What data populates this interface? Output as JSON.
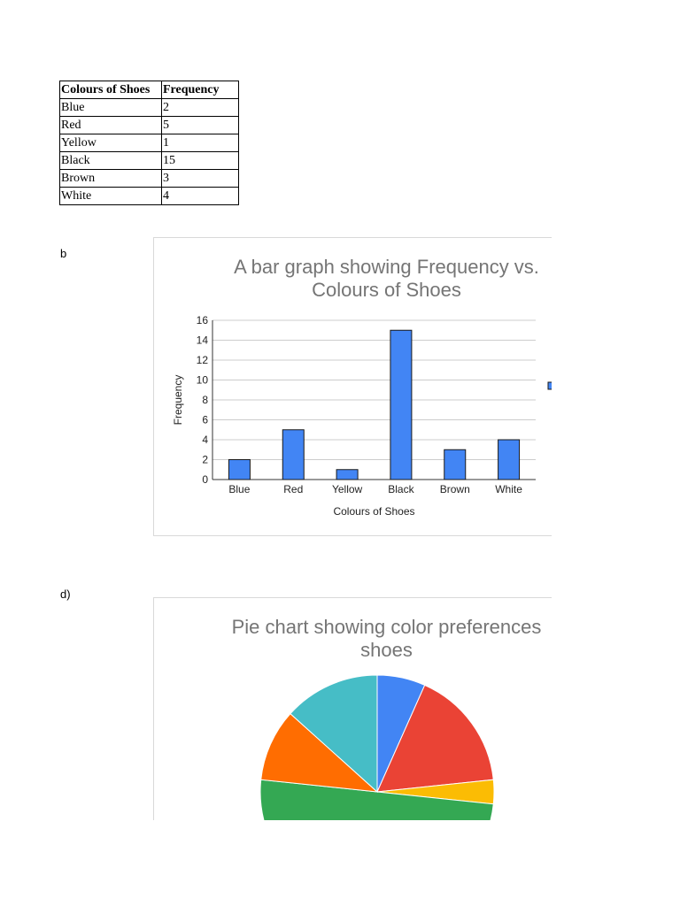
{
  "table": {
    "headers": [
      "Colours of Shoes",
      "Frequency"
    ],
    "rows": [
      [
        "Blue",
        "2"
      ],
      [
        "Red",
        "5"
      ],
      [
        "Yellow",
        "1"
      ],
      [
        "Black",
        "15"
      ],
      [
        "Brown",
        "3"
      ],
      [
        "White",
        "4"
      ]
    ]
  },
  "labels": {
    "bar_part": "b",
    "pie_part": "d)"
  },
  "chart_data": [
    {
      "type": "bar",
      "title": "A bar graph showing Frequency vs.\nColours of Shoes",
      "xlabel": "Colours of Shoes",
      "ylabel": "Frequency",
      "categories": [
        "Blue",
        "Red",
        "Yellow",
        "Black",
        "Brown",
        "White"
      ],
      "series": [
        {
          "values": [
            2,
            5,
            1,
            15,
            3,
            4
          ]
        }
      ],
      "ylim": [
        0,
        16
      ],
      "yticks": [
        0,
        2,
        4,
        6,
        8,
        10,
        12,
        14,
        16
      ],
      "grid": true,
      "legend": "right (clipped)",
      "bar_color": "#4285f4"
    },
    {
      "type": "pie",
      "title": "Pie chart showing color preferences\nshoes",
      "categories": [
        "Blue",
        "Red",
        "Yellow",
        "Black",
        "Brown",
        "White"
      ],
      "values": [
        2,
        5,
        1,
        15,
        3,
        4
      ],
      "colors": [
        "#4285f4",
        "#ea4335",
        "#fbbc04",
        "#34a853",
        "#ff6d01",
        "#46bdc6"
      ]
    }
  ]
}
